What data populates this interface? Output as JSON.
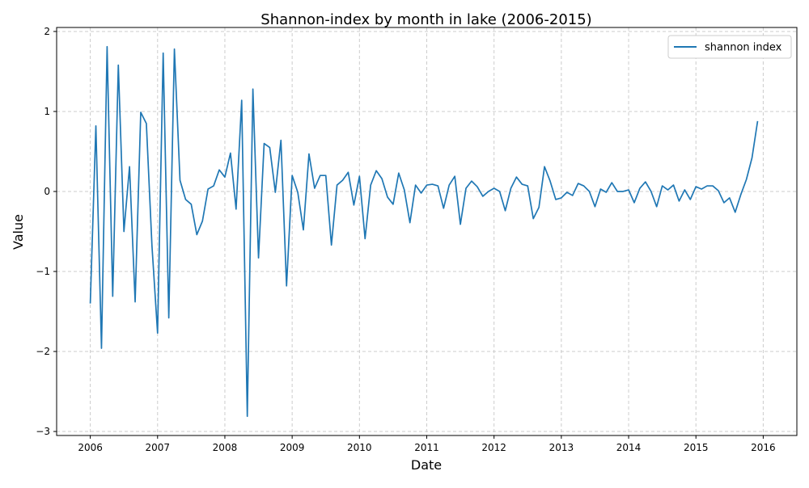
{
  "chart_data": {
    "type": "line",
    "title": "Shannon-index by month in lake (2006-2015)",
    "xlabel": "Date",
    "ylabel": "Value",
    "x_ticks": [
      "2006",
      "2007",
      "2008",
      "2009",
      "2010",
      "2011",
      "2012",
      "2013",
      "2014",
      "2015",
      "2016"
    ],
    "y_ticks": [
      "−3",
      "−2",
      "−1",
      "0",
      "1",
      "2"
    ],
    "ylim": [
      -3.05,
      2.05
    ],
    "xlim": [
      "2005-07",
      "2016-07"
    ],
    "grid": true,
    "legend_position": "top-right",
    "color": "#1f77b4",
    "series": [
      {
        "name": "shannon index",
        "x": [
          "2006-01",
          "2006-02",
          "2006-03",
          "2006-04",
          "2006-05",
          "2006-06",
          "2006-07",
          "2006-08",
          "2006-09",
          "2006-10",
          "2006-11",
          "2006-12",
          "2007-01",
          "2007-02",
          "2007-03",
          "2007-04",
          "2007-05",
          "2007-06",
          "2007-07",
          "2007-08",
          "2007-09",
          "2007-10",
          "2007-11",
          "2007-12",
          "2008-01",
          "2008-02",
          "2008-03",
          "2008-04",
          "2008-05",
          "2008-06",
          "2008-07",
          "2008-08",
          "2008-09",
          "2008-10",
          "2008-11",
          "2008-12",
          "2009-01",
          "2009-02",
          "2009-03",
          "2009-04",
          "2009-05",
          "2009-06",
          "2009-07",
          "2009-08",
          "2009-09",
          "2009-10",
          "2009-11",
          "2009-12",
          "2010-01",
          "2010-02",
          "2010-03",
          "2010-04",
          "2010-05",
          "2010-06",
          "2010-07",
          "2010-08",
          "2010-09",
          "2010-10",
          "2010-11",
          "2010-12",
          "2011-01",
          "2011-02",
          "2011-03",
          "2011-04",
          "2011-05",
          "2011-06",
          "2011-07",
          "2011-08",
          "2011-09",
          "2011-10",
          "2011-11",
          "2011-12",
          "2012-01",
          "2012-02",
          "2012-03",
          "2012-04",
          "2012-05",
          "2012-06",
          "2012-07",
          "2012-08",
          "2012-09",
          "2012-10",
          "2012-11",
          "2012-12",
          "2013-01",
          "2013-02",
          "2013-03",
          "2013-04",
          "2013-05",
          "2013-06",
          "2013-07",
          "2013-08",
          "2013-09",
          "2013-10",
          "2013-11",
          "2013-12",
          "2014-01",
          "2014-02",
          "2014-03",
          "2014-04",
          "2014-05",
          "2014-06",
          "2014-07",
          "2014-08",
          "2014-09",
          "2014-10",
          "2014-11",
          "2014-12",
          "2015-01",
          "2015-02",
          "2015-03",
          "2015-04",
          "2015-05",
          "2015-06",
          "2015-07",
          "2015-08",
          "2015-09",
          "2015-10",
          "2015-11",
          "2015-12"
        ],
        "values": [
          -1.4,
          0.82,
          -1.96,
          1.81,
          -1.31,
          1.58,
          -0.5,
          0.31,
          -1.38,
          0.99,
          0.85,
          -0.68,
          -1.77,
          1.73,
          -1.58,
          1.78,
          0.14,
          -0.1,
          -0.16,
          -0.54,
          -0.37,
          0.03,
          0.07,
          0.27,
          0.18,
          0.48,
          -0.22,
          1.14,
          -2.81,
          1.28,
          -0.83,
          0.6,
          0.55,
          -0.01,
          0.64,
          -1.18,
          0.2,
          -0.01,
          -0.48,
          0.47,
          0.04,
          0.2,
          0.2,
          -0.67,
          0.08,
          0.14,
          0.24,
          -0.17,
          0.19,
          -0.59,
          0.08,
          0.26,
          0.16,
          -0.07,
          -0.16,
          0.23,
          0.02,
          -0.39,
          0.08,
          -0.02,
          0.08,
          0.09,
          0.07,
          -0.21,
          0.08,
          0.19,
          -0.41,
          0.04,
          0.13,
          0.06,
          -0.06,
          0.0,
          0.04,
          0.0,
          -0.24,
          0.04,
          0.18,
          0.09,
          0.07,
          -0.34,
          -0.2,
          0.31,
          0.13,
          -0.1,
          -0.08,
          -0.01,
          -0.05,
          0.1,
          0.07,
          0.0,
          -0.19,
          0.03,
          -0.01,
          0.11,
          0.0,
          0.0,
          0.02,
          -0.14,
          0.04,
          0.12,
          0.0,
          -0.19,
          0.07,
          0.02,
          0.08,
          -0.12,
          0.02,
          -0.1,
          0.06,
          0.03,
          0.07,
          0.07,
          0.01,
          -0.14,
          -0.08,
          -0.26,
          -0.04,
          0.15,
          0.42,
          0.88
        ]
      }
    ]
  }
}
